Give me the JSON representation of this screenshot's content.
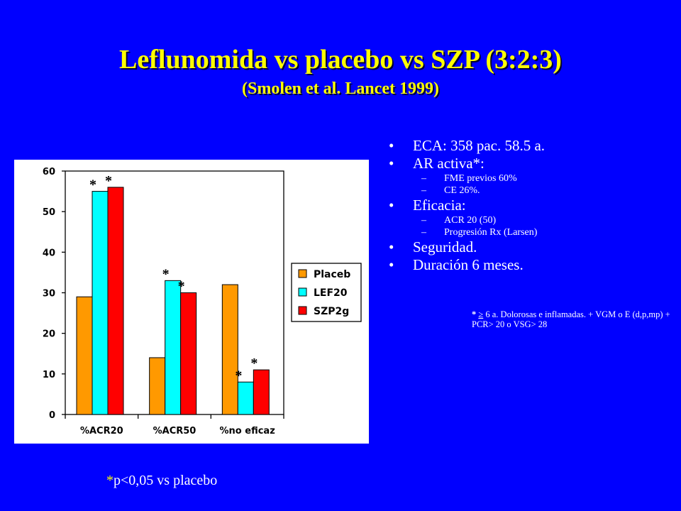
{
  "slide": {
    "title": "Leflunomida vs placebo vs SZP (3:2:3)",
    "subtitle": "(Smolen et al. Lancet 1999)",
    "bullets": [
      {
        "text": "ECA: 358 pac. 58.5 a."
      },
      {
        "text": "AR activa*:",
        "sub": [
          "FME previos 60%",
          "CE 26%."
        ]
      },
      {
        "text": "Eficacia:",
        "sub": [
          "ACR 20 (50)",
          "Progresión Rx (Larsen)"
        ]
      },
      {
        "text": "Seguridad."
      },
      {
        "text": "Duración 6 meses."
      }
    ],
    "footnote": {
      "star": "*",
      "symbol": "≥",
      "text": " 6 a. Dolorosas e inflamadas. + VGM o E (d,p,mp) + PCR> 20 o VSG> 28"
    },
    "p_note": {
      "star": "*",
      "text": "p<0,05 vs placebo"
    }
  },
  "chart_data": {
    "type": "bar",
    "categories": [
      "%ACR20",
      "%ACR50",
      "%no eficaz"
    ],
    "series": [
      {
        "name": "Placeb",
        "values": [
          29,
          14,
          32
        ],
        "color": "#ff9900",
        "significant": [
          false,
          false,
          false
        ]
      },
      {
        "name": "LEF20",
        "values": [
          55,
          33,
          8
        ],
        "color": "#00ffff",
        "significant": [
          true,
          true,
          true
        ]
      },
      {
        "name": "SZP2g",
        "values": [
          56,
          30,
          11
        ],
        "color": "#ff0000",
        "significant": [
          true,
          true,
          true
        ]
      }
    ],
    "significance_marker": "*",
    "ylim": [
      0,
      60
    ],
    "yticks": [
      0,
      10,
      20,
      30,
      40,
      50,
      60
    ],
    "grid": false,
    "legend": "right",
    "plot_background": "#ffffff"
  }
}
